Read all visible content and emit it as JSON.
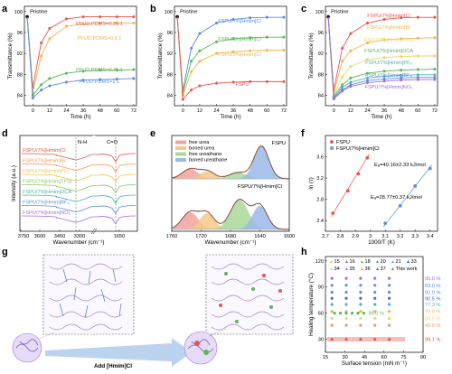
{
  "panel_letters": [
    "a",
    "b",
    "c",
    "d",
    "e",
    "f",
    "g",
    "h"
  ],
  "annotations": {
    "pristine": "Pristine",
    "nh": "N-H",
    "co": "C=O",
    "fspu_e": "FSPU",
    "fspu_him_e": "FSPU/7%[Hmim]Cl",
    "ea1": "Eₐ=40.16±2.33 kJ/mol",
    "ea2": "Eₐ=28.77±0.37 kJ/mol",
    "add_label": "Add [Hmim]Cl"
  },
  "chart_data": [
    {
      "id": "a",
      "type": "line",
      "xlabel": "Time (h)",
      "ylabel": "Transmittance (%)",
      "xlim": [
        -6,
        74
      ],
      "ylim": [
        82,
        101
      ],
      "xticks": [
        0,
        12,
        24,
        36,
        48,
        60,
        72
      ],
      "yticks": [
        84,
        88,
        92,
        96,
        100
      ],
      "pristine_value": 99,
      "series": [
        {
          "name": "PFUD:PDMS=0.25:1",
          "color": "#e8554e",
          "x": [
            0,
            6,
            12,
            24,
            36,
            48,
            60,
            72
          ],
          "values": [
            85.5,
            94,
            96.8,
            98.6,
            99,
            99,
            99,
            99
          ]
        },
        {
          "name": "PFUD:PDMS=0.5:1",
          "color": "#f0b64c",
          "x": [
            0,
            6,
            12,
            24,
            36,
            48,
            60,
            72
          ],
          "values": [
            84.5,
            91.5,
            94.8,
            97.2,
            97.6,
            97.8,
            97.8,
            97.8
          ]
        },
        {
          "name": "PFUD:PDMS=0.75:1",
          "color": "#5bb75b",
          "x": [
            0,
            6,
            12,
            24,
            36,
            48,
            60,
            72
          ],
          "values": [
            84,
            86,
            87.2,
            88.2,
            88.6,
            88.8,
            88.8,
            88.9
          ]
        },
        {
          "name": "PFUD:PDMS=1:1",
          "color": "#5b8fd9",
          "x": [
            0,
            6,
            12,
            24,
            36,
            48,
            60,
            72
          ],
          "values": [
            83.5,
            85,
            85.8,
            86.5,
            86.9,
            87,
            87.1,
            87.2
          ]
        }
      ]
    },
    {
      "id": "b",
      "type": "line",
      "xlabel": "Time (h)",
      "ylabel": "Transmittance (%)",
      "xlim": [
        -6,
        74
      ],
      "ylim": [
        82,
        101
      ],
      "xticks": [
        0,
        12,
        24,
        36,
        48,
        60,
        72
      ],
      "yticks": [
        84,
        88,
        92,
        96,
        100
      ],
      "pristine_value": 99,
      "series": [
        {
          "name": "FSPU/7%[Hmim]Cl",
          "color": "#5b8fd9",
          "x": [
            0,
            6,
            12,
            24,
            36,
            48,
            60,
            72
          ],
          "values": [
            85,
            93,
            95.8,
            97.8,
            98.5,
            98.8,
            98.9,
            98.9
          ]
        },
        {
          "name": "FSPU/5%[Hmim]Cl",
          "color": "#5bb75b",
          "x": [
            0,
            6,
            12,
            24,
            36,
            48,
            60,
            72
          ],
          "values": [
            84.5,
            90.5,
            92.5,
            94.2,
            94.8,
            95,
            95.1,
            95.1
          ]
        },
        {
          "name": "FSPU/3%[Hmim]Cl",
          "color": "#f0b64c",
          "x": [
            0,
            6,
            12,
            24,
            36,
            48,
            60,
            72
          ],
          "values": [
            84,
            88.5,
            90.5,
            92,
            92.3,
            92.5,
            92.6,
            92.6
          ]
        },
        {
          "name": "FSPU",
          "color": "#e8554e",
          "x": [
            0,
            6,
            12,
            24,
            36,
            48,
            60,
            72
          ],
          "values": [
            83.2,
            85,
            85.8,
            86.3,
            86.5,
            86.6,
            86.6,
            86.6
          ]
        }
      ]
    },
    {
      "id": "c",
      "type": "line",
      "xlabel": "Time (h)",
      "ylabel": "Transmittance (%)",
      "xlim": [
        -6,
        74
      ],
      "ylim": [
        82,
        101
      ],
      "xticks": [
        0,
        12,
        24,
        36,
        48,
        60,
        72
      ],
      "yticks": [
        84,
        88,
        92,
        96,
        100
      ],
      "pristine_value": 99,
      "series": [
        {
          "name": "FSPU/7%[Hmim]Cl",
          "color": "#e8554e",
          "x": [
            0,
            6,
            12,
            24,
            36,
            48,
            60,
            72
          ],
          "values": [
            85,
            93,
            95.8,
            97.8,
            98.5,
            98.8,
            98.9,
            98.9
          ]
        },
        {
          "name": "FSPU/7%[Hmim]Br",
          "color": "#f0b64c",
          "x": [
            0,
            6,
            12,
            24,
            36,
            48,
            60,
            72
          ],
          "values": [
            84.5,
            90.5,
            92.5,
            94,
            94.6,
            94.8,
            94.9,
            95
          ]
        },
        {
          "name": "FSPU/7%[Hmim]TFSI",
          "color": "#f5d36a",
          "x": [
            0,
            6,
            12,
            24,
            36,
            48,
            60,
            72
          ],
          "values": [
            84,
            87.5,
            89.5,
            90.8,
            91.2,
            91.4,
            91.5,
            91.5
          ]
        },
        {
          "name": "FSPU/7%[Hmim]DCA",
          "color": "#5bb75b",
          "x": [
            0,
            6,
            12,
            24,
            36,
            48,
            60,
            72
          ],
          "values": [
            83.8,
            86,
            87.3,
            88.2,
            88.6,
            88.8,
            88.9,
            89
          ]
        },
        {
          "name": "FSPU/7%[Hmim]PF₆",
          "color": "#4ab3c7",
          "x": [
            0,
            6,
            12,
            24,
            36,
            48,
            60,
            72
          ],
          "values": [
            83.5,
            85.5,
            86.5,
            87.3,
            87.6,
            87.8,
            87.9,
            87.9
          ]
        },
        {
          "name": "FSPU/7%[Hmim]BF₄",
          "color": "#5b8fd9",
          "x": [
            0,
            6,
            12,
            24,
            36,
            48,
            60,
            72
          ],
          "values": [
            83.4,
            85,
            86,
            86.8,
            87.1,
            87.3,
            87.4,
            87.4
          ]
        },
        {
          "name": "FSPU/7%[Hmim]NO₃",
          "color": "#a66bd6",
          "x": [
            0,
            6,
            12,
            24,
            36,
            48,
            60,
            72
          ],
          "values": [
            83.3,
            84.8,
            85.7,
            86.4,
            86.7,
            86.9,
            87,
            87
          ]
        }
      ]
    },
    {
      "id": "d",
      "type": "line",
      "xlabel": "Wavenumber (cm⁻¹)",
      "ylabel": "Intensity (a.u.)",
      "xlim": [
        3750,
        1550
      ],
      "xtick_labels": [
        "3750",
        "3600",
        "3450",
        "3300",
        "1650"
      ],
      "series": [
        {
          "name": "FSPU/7%[Hmim]Cl",
          "color": "#e8554e"
        },
        {
          "name": "FSPU/7%[Hmim]Br",
          "color": "#f09a5c"
        },
        {
          "name": "FSPU/7%[Hmim]PF₆",
          "color": "#f0c64c"
        },
        {
          "name": "FSPU/7%[Hmim]TFSI",
          "color": "#8cc35c"
        },
        {
          "name": "FSPU/7%[Hmim]DCA",
          "color": "#4ab3a0"
        },
        {
          "name": "FSPU/7%[Hmim]BF₄",
          "color": "#5b8fd9"
        },
        {
          "name": "FSPU/7%[Hmim]NO₃",
          "color": "#a66bd6"
        }
      ]
    },
    {
      "id": "e",
      "type": "area",
      "xlabel": "Wavenumber (cm⁻¹)",
      "xlim": [
        1760,
        1600
      ],
      "xticks": [
        1760,
        1720,
        1680,
        1640,
        1600
      ],
      "legend": [
        {
          "name": "free urea",
          "color": "#f2a39d"
        },
        {
          "name": "boned urea",
          "color": "#f5c98a"
        },
        {
          "name": "free ureathane",
          "color": "#a8d89a"
        },
        {
          "name": "boned ureathane",
          "color": "#9cb9e6"
        }
      ],
      "upper_peaks": [
        {
          "name": "free urea",
          "center": 1735,
          "height": 0.28,
          "width": 11
        },
        {
          "name": "boned urea",
          "center": 1712,
          "height": 0.22,
          "width": 10
        },
        {
          "name": "free ureathane",
          "center": 1670,
          "height": 0.18,
          "width": 12
        },
        {
          "name": "boned ureathane",
          "center": 1638,
          "height": 0.95,
          "width": 10
        }
      ],
      "lower_peaks": [
        {
          "name": "free urea",
          "center": 1735,
          "height": 0.45,
          "width": 11
        },
        {
          "name": "boned urea",
          "center": 1712,
          "height": 0.42,
          "width": 10
        },
        {
          "name": "free ureathane",
          "center": 1668,
          "height": 0.78,
          "width": 12
        },
        {
          "name": "boned ureathane",
          "center": 1640,
          "height": 0.62,
          "width": 10
        }
      ]
    },
    {
      "id": "f",
      "type": "scatter",
      "xlabel": "1000/T (K)",
      "ylabel": "ln (τ)",
      "xlim": [
        2.7,
        3.45
      ],
      "ylim": [
        2.2,
        4.0
      ],
      "xticks": [
        2.7,
        2.8,
        2.9,
        3.0,
        3.1,
        3.2,
        3.3,
        3.4
      ],
      "yticks": [
        2.4,
        2.8,
        3.2,
        3.6
      ],
      "series": [
        {
          "name": "FSPU",
          "color": "#e8554e",
          "x": [
            2.75,
            2.85,
            2.92,
            2.98
          ],
          "values": [
            2.54,
            2.96,
            3.28,
            3.58
          ]
        },
        {
          "name": "FSPU/7%[Hmim]Cl",
          "color": "#5b8fd9",
          "x": [
            3.1,
            3.2,
            3.3,
            3.4
          ],
          "values": [
            2.35,
            2.68,
            3.05,
            3.38
          ]
        }
      ]
    },
    {
      "id": "h",
      "type": "scatter",
      "xlabel": "Surface tension (mN m⁻¹)",
      "ylabel": "Healing temperature (°C)",
      "xlim": [
        15,
        90
      ],
      "ylim": [
        15,
        125
      ],
      "xticks": [
        15,
        30,
        45,
        60,
        75,
        90
      ],
      "yticks": [
        30,
        60,
        90,
        120
      ],
      "legend_refs": [
        "15",
        "16",
        "18",
        "20",
        "21",
        "33",
        "34",
        "35",
        "36",
        "37",
        "This work"
      ],
      "efficiencies": [
        {
          "label": "95.0 %",
          "color": "#a66bd6",
          "y": 100
        },
        {
          "label": "93.0 %",
          "color": "#5b8fd9",
          "y": 92
        },
        {
          "label": "92.0 %",
          "color": "#5b8fd9",
          "y": 84
        },
        {
          "label": "90.5 %",
          "color": "#4a6fc0",
          "y": 77
        },
        {
          "label": "77.3 %",
          "color": "#4ab3c7",
          "y": 70
        },
        {
          "label": "70.0 %",
          "color": "#f0b64c",
          "y": 62
        },
        {
          "label": "60.0 %",
          "color": "#f5d36a",
          "y": 54
        },
        {
          "label": "42.0 %",
          "color": "#f09a5c",
          "y": 46
        },
        {
          "label": "99.1 %",
          "color": "#e8554e",
          "y": 30
        },
        {
          "label": "95.0 %",
          "color": "#5bb75b",
          "y": 60
        }
      ]
    }
  ]
}
